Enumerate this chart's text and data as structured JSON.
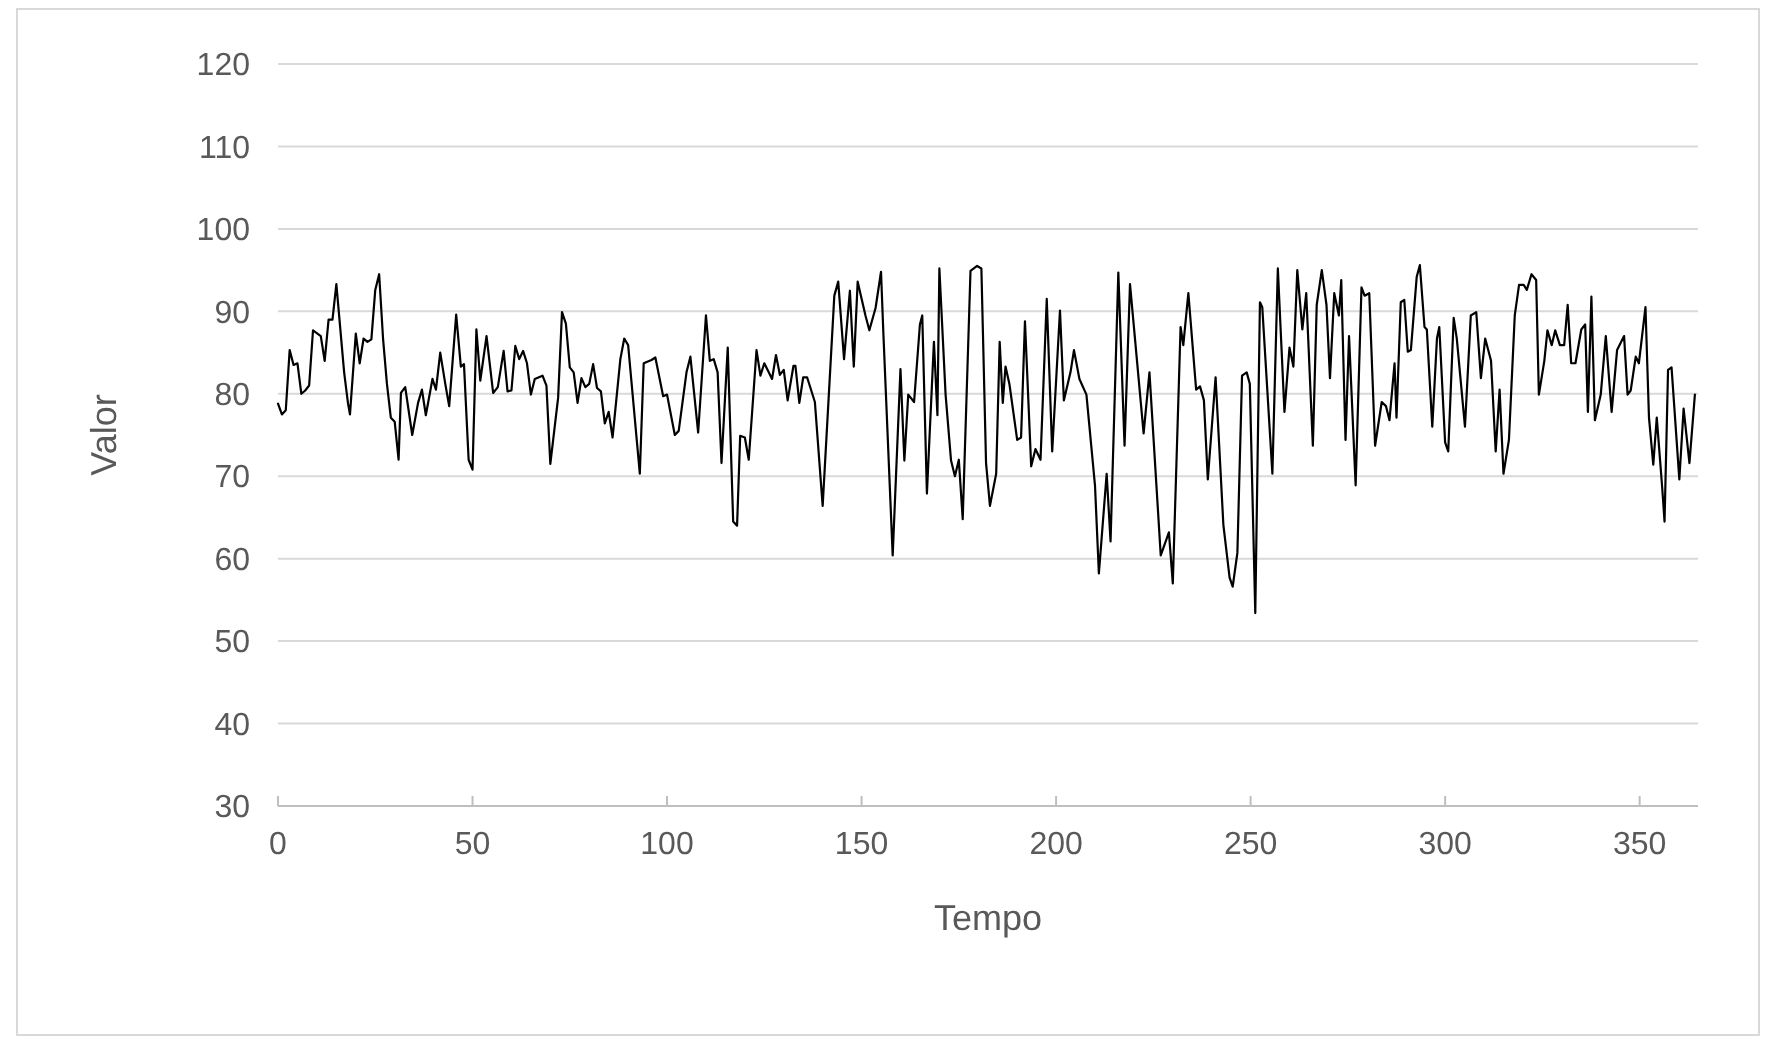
{
  "chart_data": {
    "type": "line",
    "xlabel": "Tempo",
    "ylabel": "Valor",
    "xlim": [
      0,
      365
    ],
    "xticks": [
      0,
      50,
      100,
      150,
      200,
      250,
      300,
      350
    ],
    "ylim": [
      30,
      120
    ],
    "yticks": [
      30,
      40,
      50,
      60,
      70,
      80,
      90,
      100,
      110,
      120
    ],
    "grid": "y",
    "marker": "none",
    "line_style": "solid",
    "series": [
      {
        "color": "#000000",
        "x": [
          0,
          1,
          2,
          3,
          4,
          5,
          6,
          7,
          8,
          9,
          11,
          12,
          13,
          14,
          15,
          17,
          18,
          18.5,
          20,
          21,
          22,
          23,
          24,
          25,
          26,
          27,
          28,
          29,
          30,
          31,
          31.6,
          32.7,
          34.5,
          36,
          37,
          38,
          39.7,
          40.6,
          41.7,
          43,
          44,
          45.8,
          47,
          47.8,
          49,
          50,
          51,
          52,
          53.6,
          55.3,
          56.5,
          58,
          59,
          60,
          61,
          62,
          63,
          64,
          65,
          66,
          68,
          69,
          70,
          72,
          73,
          74,
          75,
          76,
          77,
          78,
          79,
          80,
          81,
          82,
          83,
          84,
          85,
          86,
          88,
          89,
          90,
          93,
          94,
          96,
          97,
          99,
          100,
          102,
          103,
          105,
          106,
          108,
          110,
          111,
          112,
          113,
          114,
          115.6,
          117,
          118,
          118.8,
          120,
          121,
          123,
          124,
          125,
          127,
          128,
          129,
          130,
          131,
          132.5,
          133,
          134,
          135,
          136,
          138,
          140,
          143,
          144,
          145.5,
          147,
          148,
          149,
          151,
          152,
          153.6,
          155,
          155.6,
          158,
          160,
          161,
          162,
          163.5,
          165,
          165.6,
          166.8,
          168.6,
          169.5,
          170,
          171.6,
          173,
          174,
          175,
          176,
          178,
          179.7,
          180.8,
          182,
          183,
          184.6,
          185.5,
          186.3,
          187,
          188,
          190,
          191,
          192,
          193.6,
          194.7,
          196,
          197.6,
          199,
          201,
          202,
          203.7,
          204.6,
          206,
          207.8,
          210,
          211,
          213,
          214,
          216,
          217.6,
          219,
          222.5,
          224,
          226.9,
          229,
          230,
          232,
          232.7,
          234,
          236,
          237,
          238,
          239,
          241,
          243,
          244.6,
          245.4,
          246.6,
          247.8,
          249,
          249.8,
          251.2,
          252.4,
          253,
          255.6,
          257,
          258.7,
          260,
          261,
          262,
          263.3,
          264.3,
          266,
          267,
          268.3,
          269.5,
          270.4,
          271.5,
          272.7,
          273.3,
          274.4,
          275.3,
          277,
          278.5,
          279.3,
          280.5,
          282,
          283.7,
          284.8,
          285.7,
          287,
          287.5,
          288.6,
          289.5,
          290.4,
          291.2,
          292.7,
          293.5,
          294.7,
          295.3,
          296.7,
          297.9,
          298.5,
          300,
          300.8,
          302.2,
          303,
          305.1,
          306.6,
          308,
          309.2,
          310.3,
          311.8,
          313,
          314,
          315,
          316.4,
          317.9,
          319,
          320.2,
          321,
          322.2,
          323.4,
          324.1,
          325.5,
          326.3,
          327.4,
          328.3,
          329.5,
          330.6,
          331.5,
          332.4,
          333.5,
          335,
          336,
          336.7,
          337.6,
          338.5,
          340,
          341.3,
          342.8,
          344.2,
          346,
          346.9,
          347.7,
          349,
          349.8,
          351.5,
          352.4,
          353.5,
          354.4,
          355.8,
          356.4,
          357.3,
          358.2,
          360.2,
          361.3,
          362.8,
          364.2
        ],
        "values": [
          78.8,
          77.5,
          78,
          85.3,
          83.5,
          83.7,
          80,
          80.4,
          81,
          87.7,
          87,
          84,
          89,
          89,
          93.3,
          82.6,
          78.8,
          77.5,
          87.3,
          83.7,
          86.7,
          86.3,
          86.6,
          92.6,
          94.5,
          86.7,
          81.2,
          77.1,
          76.6,
          72,
          80.1,
          80.8,
          75,
          78.9,
          80.5,
          77.4,
          81.8,
          80.5,
          85,
          81.2,
          78.5,
          89.6,
          83.3,
          83.6,
          72,
          70.8,
          87.8,
          81.6,
          87,
          80.1,
          80.8,
          85.2,
          80.3,
          80.4,
          85.8,
          84.2,
          85.2,
          83.7,
          79.9,
          81.8,
          82.2,
          81,
          71.5,
          79.5,
          89.9,
          88.5,
          83.2,
          82.6,
          78.9,
          81.9,
          80.8,
          81.2,
          83.6,
          80.7,
          80.3,
          76.4,
          77.8,
          74.7,
          84.2,
          86.7,
          85.9,
          70.3,
          83.7,
          84.1,
          84.4,
          79.7,
          79.9,
          75,
          75.5,
          82.6,
          84.5,
          75.3,
          89.5,
          84,
          84.2,
          82.6,
          71.6,
          85.6,
          64.5,
          64,
          74.9,
          74.7,
          72,
          85.3,
          82.2,
          83.7,
          81.8,
          84.7,
          82.3,
          82.9,
          79.2,
          83.4,
          83.4,
          78.9,
          82,
          82,
          79,
          66.4,
          91.9,
          93.6,
          84.2,
          92.5,
          83.3,
          93.6,
          89.5,
          87.7,
          90.4,
          94.8,
          87.4,
          60.4,
          83,
          71.9,
          79.9,
          79,
          88.4,
          89.5,
          67.9,
          86.3,
          77.4,
          95.2,
          79.9,
          71.9,
          70,
          72,
          64.8,
          94.9,
          95.5,
          95.2,
          71.6,
          66.4,
          70.3,
          86.3,
          78.9,
          83.3,
          81.2,
          74.4,
          74.7,
          88.8,
          71.2,
          73.3,
          72,
          91.5,
          73,
          90.1,
          79.2,
          82.6,
          85.3,
          81.8,
          79.9,
          68.9,
          58.2,
          70.3,
          62.1,
          94.7,
          73.7,
          93.3,
          75.2,
          82.6,
          60.4,
          63.2,
          57,
          88.1,
          85.9,
          92.2,
          80.5,
          80.9,
          79.2,
          69.6,
          82,
          64.1,
          57.7,
          56.6,
          60.7,
          82.2,
          82.6,
          81.2,
          53.4,
          91.1,
          90.5,
          70.3,
          95.2,
          77.8,
          85.6,
          83.3,
          95,
          87.8,
          92.2,
          73.7,
          90.8,
          95,
          90.8,
          81.9,
          92.2,
          89.5,
          93.8,
          74.4,
          87,
          68.9,
          92.9,
          91.9,
          92.2,
          73.7,
          79,
          78.5,
          76.8,
          83.7,
          77.1,
          91.1,
          91.4,
          85.1,
          85.3,
          94.2,
          95.6,
          88.1,
          87.8,
          76,
          86.7,
          88.1,
          74.1,
          73,
          89.2,
          86.7,
          76,
          89.5,
          89.9,
          81.9,
          86.7,
          84,
          73,
          80.5,
          70.3,
          74.4,
          89.5,
          93.2,
          93.2,
          92.6,
          94.5,
          93.8,
          79.9,
          84,
          87.7,
          85.9,
          87.7,
          85.9,
          85.9,
          90.8,
          83.7,
          83.7,
          87.8,
          88.4,
          77.8,
          91.8,
          76.8,
          79.9,
          87,
          77.8,
          85.3,
          87,
          79.9,
          80.4,
          84.5,
          83.7,
          90.5,
          77.1,
          71.4,
          77.1,
          68.6,
          64.5,
          82.9,
          83.2,
          69.6,
          78.2,
          71.6,
          79.9
        ]
      }
    ]
  }
}
